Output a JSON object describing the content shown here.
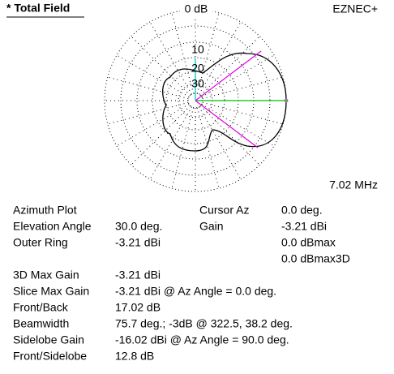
{
  "header": {
    "title": "* Total Field",
    "program": "EZNEC+"
  },
  "plot": {
    "ring_labels": [
      "0 dB",
      "10",
      "20",
      "30"
    ],
    "frequency": "7.02 MHz"
  },
  "info": {
    "left": [
      {
        "label": "Azimuth Plot"
      },
      {
        "label": "Elevation Angle",
        "value": "30.0 deg."
      },
      {
        "label": "Outer Ring",
        "value": "-3.21 dBi"
      }
    ],
    "cursor": [
      {
        "label": "Cursor Az",
        "value": "0.0 deg."
      },
      {
        "label": "Gain",
        "value": "-3.21 dBi"
      },
      {
        "value": "0.0 dBmax"
      },
      {
        "value": "0.0 dBmax3D"
      }
    ],
    "summary": [
      {
        "label": "3D Max Gain",
        "value": "-3.21 dBi"
      },
      {
        "label": "Slice Max Gain",
        "value": "-3.21 dBi @ Az Angle = 0.0 deg."
      },
      {
        "label": "Front/Back",
        "value": "17.02 dB"
      },
      {
        "label": "Beamwidth",
        "value": "75.7 deg.; -3dB @ 322.5, 38.2 deg."
      },
      {
        "label": "Sidelobe Gain",
        "value": "-16.02 dBi @ Az Angle = 90.0 deg."
      },
      {
        "label": "Front/Sidelobe",
        "value": "12.8 dB"
      }
    ]
  }
}
